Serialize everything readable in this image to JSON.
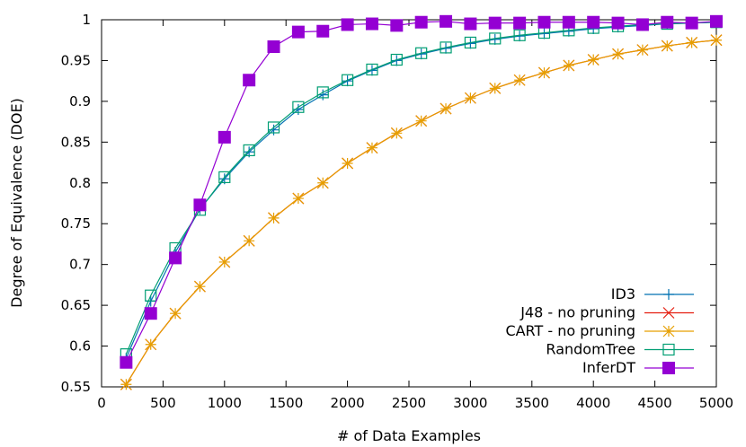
{
  "chart_data": {
    "type": "line",
    "title": "",
    "xlabel": "# of Data Examples",
    "ylabel": "Degree of Equivalence (DOE)",
    "xlim": [
      0,
      5000
    ],
    "ylim": [
      0.55,
      1.0
    ],
    "xticks": [
      0,
      500,
      1000,
      1500,
      2000,
      2500,
      3000,
      3500,
      4000,
      4500,
      5000
    ],
    "yticks": [
      0.55,
      0.6,
      0.65,
      0.7,
      0.75,
      0.8,
      0.85,
      0.9,
      0.95,
      1.0
    ],
    "xtick_labels": [
      "0",
      "500",
      "1000",
      "1500",
      "2000",
      "2500",
      "3000",
      "3500",
      "4000",
      "4500",
      "5000"
    ],
    "ytick_labels": [
      "0.55",
      "0.6",
      "0.65",
      "0.7",
      "0.75",
      "0.8",
      "0.85",
      "0.9",
      "0.95",
      "1"
    ],
    "grid": false,
    "legend_position": "bottom-right",
    "x": [
      200,
      400,
      600,
      800,
      1000,
      1200,
      1400,
      1600,
      1800,
      2000,
      2200,
      2400,
      2600,
      2800,
      3000,
      3200,
      3400,
      3600,
      3800,
      4000,
      4200,
      4400,
      4600,
      4800,
      5000
    ],
    "series": [
      {
        "name": "ID3",
        "color": "#0072b2",
        "marker": "plus",
        "values": [
          0.585,
          0.655,
          0.715,
          0.768,
          0.805,
          0.838,
          0.865,
          0.89,
          0.908,
          0.925,
          0.938,
          0.95,
          0.958,
          0.965,
          0.971,
          0.976,
          0.98,
          0.983,
          0.986,
          0.989,
          0.991,
          0.993,
          0.995,
          0.996,
          0.997
        ]
      },
      {
        "name": "J48 - no pruning",
        "color": "#e51e10",
        "marker": "x",
        "values": [
          0.553,
          0.602,
          0.64,
          0.673,
          0.703,
          0.729,
          0.757,
          0.781,
          0.8,
          0.824,
          0.843,
          0.861,
          0.876,
          0.891,
          0.904,
          0.916,
          0.926,
          0.935,
          0.944,
          0.951,
          0.958,
          0.963,
          0.968,
          0.972,
          0.975
        ]
      },
      {
        "name": "CART - no pruning",
        "color": "#e69f00",
        "marker": "star",
        "values": [
          0.553,
          0.602,
          0.64,
          0.673,
          0.703,
          0.729,
          0.757,
          0.781,
          0.8,
          0.824,
          0.843,
          0.861,
          0.876,
          0.891,
          0.904,
          0.916,
          0.926,
          0.935,
          0.944,
          0.951,
          0.958,
          0.963,
          0.968,
          0.972,
          0.975
        ]
      },
      {
        "name": "RandomTree",
        "color": "#009e73",
        "marker": "open-square",
        "values": [
          0.59,
          0.662,
          0.72,
          0.767,
          0.807,
          0.84,
          0.868,
          0.893,
          0.911,
          0.926,
          0.939,
          0.951,
          0.959,
          0.966,
          0.972,
          0.977,
          0.981,
          0.984,
          0.987,
          0.99,
          0.992,
          0.994,
          0.995,
          0.996,
          0.997
        ]
      },
      {
        "name": "InferDT",
        "color": "#9400d3",
        "marker": "filled-square",
        "values": [
          0.58,
          0.64,
          0.708,
          0.773,
          0.856,
          0.926,
          0.967,
          0.985,
          0.986,
          0.994,
          0.995,
          0.993,
          0.997,
          0.998,
          0.995,
          0.996,
          0.996,
          0.997,
          0.997,
          0.997,
          0.996,
          0.994,
          0.997,
          0.996,
          0.998
        ]
      }
    ]
  }
}
